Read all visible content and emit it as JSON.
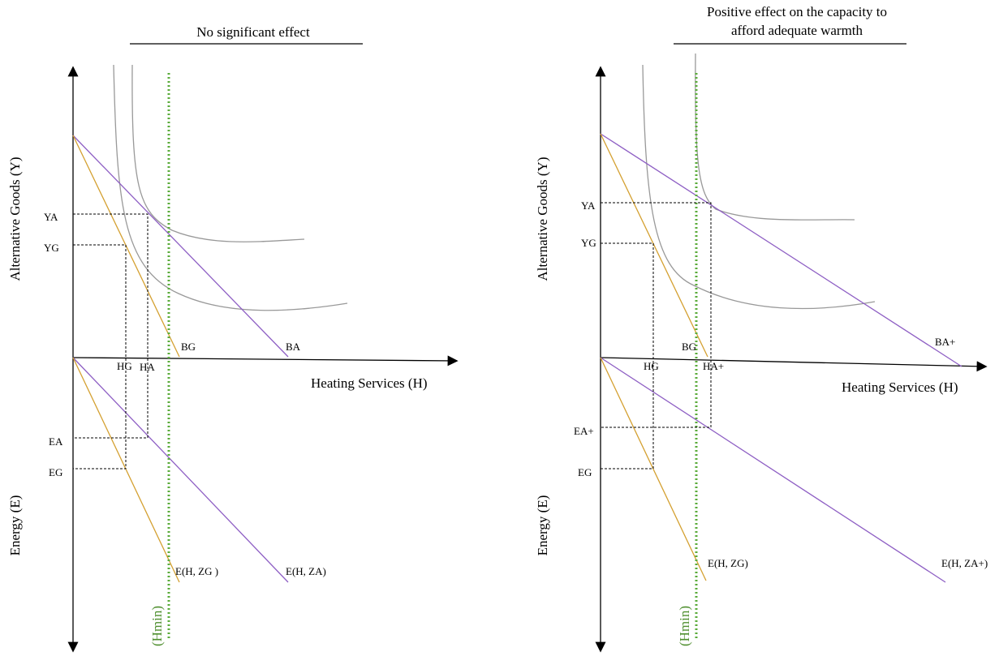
{
  "panels": [
    {
      "title": [
        "No significant effect"
      ],
      "y_axis_label": "Alternative Goods (Y)",
      "x_axis_label": "Heating Services (H)",
      "energy_axis_label": "Energy (E)",
      "hmin_label": "(Hmin)",
      "labels": {
        "ya": "YA",
        "yg": "YG",
        "bg": "BG",
        "ba": "BA",
        "hg": "HG",
        "ha": "HA",
        "ea": "EA",
        "eg": "EG",
        "ezg": "E(H, ZG )",
        "eza": "E(H, ZA)"
      }
    },
    {
      "title": [
        "Positive effect on the capacity to",
        "afford adequate warmth"
      ],
      "y_axis_label": "Alternative Goods (Y)",
      "x_axis_label": "Heating Services (H)",
      "energy_axis_label": "Energy (E)",
      "hmin_label": "(Hmin)",
      "labels": {
        "ya": "YA",
        "yg": "YG",
        "bg": "BG",
        "ba": "BA+",
        "hg": "HG",
        "ha": "HA+",
        "ea": "EA+",
        "eg": "EG",
        "ezg": "E(H, ZG)",
        "eza": "E(H, ZA+)"
      }
    }
  ]
}
